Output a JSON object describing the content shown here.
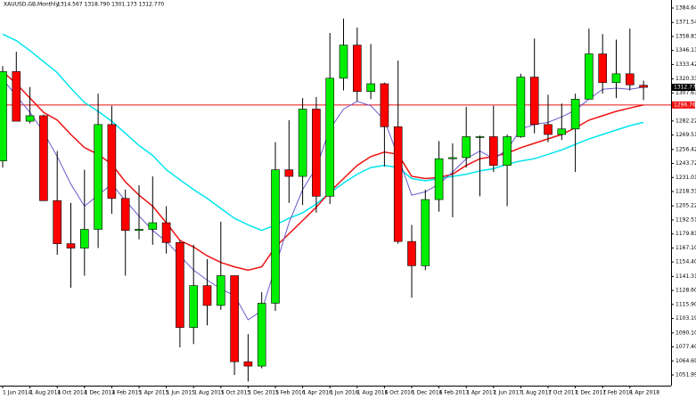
{
  "chart_data": {
    "type": "candlestick",
    "title": "XAUUSD,GB,Monthly",
    "subtitle": "1314.567 1318.790 1301.173 1312.770",
    "categories": [
      "1 Jun 2014",
      null,
      "1 Aug 2014",
      null,
      "1 Oct 2014",
      null,
      "1 Dec 2014",
      null,
      "1 Feb 2015",
      null,
      "1 Apr 2015",
      null,
      "1 Jun 2015",
      null,
      "1 Aug 2015",
      null,
      "1 Oct 2015",
      null,
      "1 Dec 2015",
      null,
      "1 Feb 2016",
      null,
      "1 Apr 2016",
      null,
      "1 Jun 2016",
      null,
      "1 Aug 2016",
      null,
      "1 Oct 2016",
      null,
      "1 Dec 2016",
      null,
      "1 Feb 2017",
      null,
      "1 Apr 2017",
      null,
      "1 Jun 2017",
      null,
      "1 Aug 2017",
      null,
      "1 Oct 2017",
      null,
      "1 Dec 2017",
      null,
      "1 Feb 2018",
      null,
      "1 Apr 2018",
      null
    ],
    "open": [
      1246,
      1327,
      1282,
      1287,
      1210,
      1171,
      1167,
      1184,
      1279,
      1212,
      1183,
      1184,
      1190,
      1172,
      1095,
      1133,
      1115,
      1142,
      1064,
      1060,
      1117,
      1238,
      1232,
      1293,
      1214,
      1321,
      1351,
      1309,
      1316,
      1277,
      1173,
      1151,
      1211,
      1248,
      1249,
      1268,
      1268,
      1242,
      1268,
      1322,
      1279,
      1270,
      1275,
      1302,
      1343,
      1317,
      1325,
      1314.567
    ],
    "high": [
      1332,
      1345,
      1313,
      1288,
      1255,
      1208,
      1238,
      1307,
      1296,
      1220,
      1224,
      1232,
      1205,
      1174,
      1170,
      1157,
      1191,
      1142,
      1089,
      1127,
      1263,
      1283,
      1303,
      1304,
      1362,
      1375,
      1367,
      1352,
      1317,
      1337,
      1188,
      1220,
      1264,
      1262,
      1295,
      1269,
      1296,
      1270,
      1325,
      1357,
      1306,
      1298,
      1307,
      1366,
      1361,
      1356,
      1366,
      1318.79
    ],
    "low": [
      1240,
      1285,
      1280,
      1210,
      1161,
      1131,
      1142,
      1167,
      1198,
      1142,
      1175,
      1170,
      1162,
      1077,
      1080,
      1097,
      1111,
      1052,
      1046,
      1058,
      1110,
      1208,
      1206,
      1199,
      1207,
      1310,
      1300,
      1302,
      1241,
      1171,
      1122,
      1147,
      1200,
      1195,
      1240,
      1214,
      1236,
      1205,
      1267,
      1271,
      1263,
      1265,
      1236,
      1302,
      1307,
      1303,
      1310,
      1301.173
    ],
    "close": [
      1327,
      1282,
      1287,
      1210,
      1171,
      1167,
      1184,
      1279,
      1212,
      1183,
      1184,
      1190,
      1172,
      1095,
      1133,
      1115,
      1142,
      1064,
      1060,
      1117,
      1238,
      1232,
      1293,
      1214,
      1321,
      1351,
      1309,
      1316,
      1277,
      1173,
      1151,
      1211,
      1248,
      1249,
      1268,
      1268,
      1242,
      1268,
      1322,
      1279,
      1270,
      1275,
      1302,
      1343,
      1317,
      1325,
      1315,
      1312.77
    ],
    "up_color": "#00ee00",
    "down_color": "#ff0000",
    "series": [
      {
        "color": "#00e5ee",
        "values": [
          1361,
          1355,
          1346,
          1336,
          1326,
          1312,
          1299,
          1291,
          1282,
          1271,
          1260,
          1251,
          1238,
          1229,
          1220,
          1212,
          1203,
          1194,
          1188,
          1183,
          1188,
          1194,
          1199,
          1207,
          1217,
          1226,
          1234,
          1240,
          1242,
          1240,
          1230,
          1228,
          1230,
          1232,
          1234,
          1237,
          1239,
          1243,
          1246,
          1248,
          1252,
          1256,
          1261,
          1266,
          1270,
          1274,
          1278,
          1281
        ]
      },
      {
        "color": "#ee1111",
        "values": [
          1327,
          1316,
          1303,
          1290,
          1283,
          1270,
          1258,
          1252,
          1243,
          1227,
          1215,
          1205,
          1190,
          1174,
          1168,
          1160,
          1154,
          1150,
          1147,
          1150,
          1168,
          1180,
          1192,
          1204,
          1218,
          1230,
          1242,
          1250,
          1254,
          1252,
          1232,
          1230,
          1231,
          1234,
          1242,
          1248,
          1250,
          1253,
          1258,
          1262,
          1266,
          1270,
          1276,
          1283,
          1287,
          1291,
          1294,
          1296.762
        ]
      },
      {
        "color": "#6a5acd",
        "values": [
          1320,
          1305,
          1290,
          1272,
          1250,
          1225,
          1205,
          1215,
          1225,
          1210,
          1196,
          1183,
          1173,
          1160,
          1147,
          1138,
          1130,
          1124,
          1102,
          1110,
          1150,
          1190,
          1220,
          1240,
          1275,
          1293,
          1300,
          1296,
          1283,
          1250,
          1215,
          1218,
          1225,
          1236,
          1248,
          1255,
          1248,
          1256,
          1275,
          1279,
          1281,
          1286,
          1292,
          1302,
          1311,
          1312,
          1311,
          1313
        ]
      }
    ],
    "ylim": [
      1042.3,
      1391.9
    ],
    "yticks": [
      {
        "value": 1384.64,
        "label": "1384.640"
      },
      {
        "value": 1371.54,
        "label": "1371.540"
      },
      1358.835,
      {
        "value": 1346.13,
        "label": "1346.130"
      },
      1333.425,
      1320.335,
      {
        "value": 1307.63,
        "label": "1307.630"
      },
      {
        "value": 1282.22,
        "label": "1282.220"
      },
      1269.515,
      1256.425,
      {
        "value": 1243.72,
        "label": "1243.720"
      },
      1231.015,
      {
        "value": 1218.31,
        "label": "1218.310"
      },
      {
        "value": 1205.22,
        "label": "1205.220"
      },
      1192.515,
      {
        "value": 1179.81,
        "label": "1179.810"
      },
      1167.105,
      {
        "value": 1154.4,
        "label": "1154.400"
      },
      {
        "value": 1141.31,
        "label": "1141.310"
      },
      1128.605,
      {
        "value": 1115.9,
        "label": "1115.900"
      },
      1103.195,
      1090.105,
      {
        "value": 1077.4,
        "label": "1077.400"
      },
      1064.695,
      {
        "value": 1051.99,
        "label": "1051.990"
      }
    ],
    "last_price": {
      "value": 1312.77,
      "label": "1312.770"
    },
    "level": {
      "value": 1296.762,
      "color": "#ee1111"
    }
  }
}
